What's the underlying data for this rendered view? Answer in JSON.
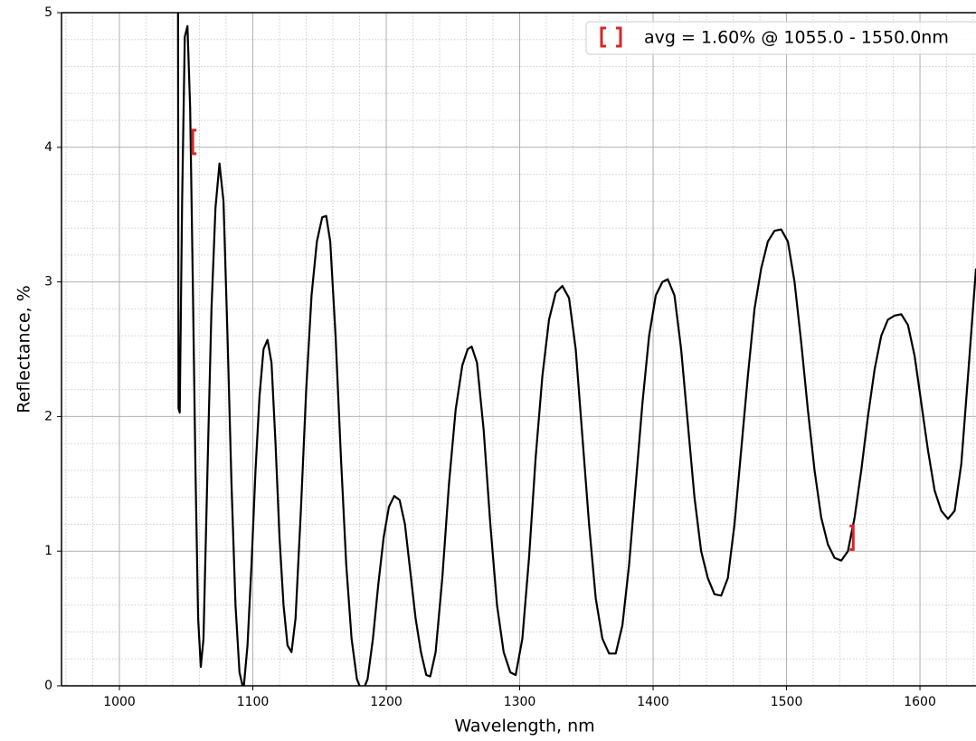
{
  "chart_data": {
    "type": "line",
    "xlabel": "Wavelength, nm",
    "ylabel": "Reflectance, %",
    "xlim": [
      956.6,
      1642
    ],
    "ylim": [
      0,
      5
    ],
    "xticks": [
      1000,
      1100,
      1200,
      1300,
      1400,
      1500,
      1600
    ],
    "yticks": [
      0,
      1,
      2,
      3,
      4,
      5
    ],
    "xminorticks": [
      960,
      980,
      1000,
      1020,
      1040,
      1060,
      1080,
      1100,
      1120,
      1140,
      1160,
      1180,
      1200,
      1220,
      1240,
      1260,
      1280,
      1300,
      1320,
      1340,
      1360,
      1380,
      1400,
      1420,
      1440,
      1460,
      1480,
      1500,
      1520,
      1540,
      1560,
      1580,
      1600,
      1620,
      1640
    ],
    "yminorticks": [
      0.2,
      0.4,
      0.6,
      0.8,
      1.2,
      1.4,
      1.6,
      1.8,
      2.2,
      2.4,
      2.6,
      2.8,
      3.2,
      3.4,
      3.6,
      3.8,
      4.2,
      4.4,
      4.6,
      4.8
    ],
    "grid": true,
    "x": [
      1043.8,
      1044.3,
      1045.2,
      1047,
      1049,
      1051,
      1053,
      1055,
      1057,
      1059,
      1061,
      1063,
      1066,
      1069,
      1072,
      1075,
      1078,
      1081,
      1084,
      1087,
      1090,
      1093,
      1096,
      1099,
      1102,
      1105,
      1108,
      1111,
      1114,
      1117,
      1120,
      1123,
      1126,
      1129,
      1132,
      1136,
      1140,
      1144,
      1148,
      1152,
      1155,
      1158,
      1162,
      1166,
      1170,
      1174,
      1178,
      1182,
      1186,
      1190,
      1194,
      1198,
      1202,
      1206,
      1210,
      1214,
      1218,
      1222,
      1226,
      1230,
      1233,
      1237,
      1242,
      1247,
      1252,
      1257,
      1261,
      1264,
      1268,
      1273,
      1278,
      1283,
      1288,
      1293,
      1297,
      1302,
      1307,
      1312,
      1317,
      1322,
      1327,
      1332,
      1337,
      1342,
      1347,
      1352,
      1357,
      1362,
      1367,
      1372,
      1377,
      1382,
      1387,
      1392,
      1397,
      1402,
      1407,
      1411,
      1416,
      1421,
      1426,
      1431,
      1436,
      1441,
      1446,
      1451,
      1456,
      1461,
      1466,
      1471,
      1476,
      1481,
      1486,
      1491,
      1496,
      1501,
      1506,
      1511,
      1516,
      1521,
      1526,
      1531,
      1536,
      1541,
      1546,
      1551,
      1556,
      1561,
      1566,
      1571,
      1576,
      1581,
      1586,
      1591,
      1596,
      1601,
      1606,
      1611,
      1616,
      1621,
      1626,
      1631,
      1636,
      1642
    ],
    "series": [
      {
        "name": "avg = 1.60% @ 1055.0 - 1550.0nm",
        "color": "#000000",
        "values": [
          6,
          2.06,
          2.03,
          3.6,
          4.82,
          4.9,
          4.3,
          3.0,
          1.6,
          0.5,
          0.14,
          0.35,
          1.6,
          2.8,
          3.55,
          3.88,
          3.6,
          2.6,
          1.5,
          0.6,
          0.1,
          -0.03,
          0.3,
          0.9,
          1.6,
          2.15,
          2.5,
          2.57,
          2.4,
          1.8,
          1.1,
          0.6,
          0.3,
          0.25,
          0.5,
          1.3,
          2.2,
          2.9,
          3.3,
          3.48,
          3.49,
          3.3,
          2.6,
          1.7,
          0.9,
          0.35,
          0.05,
          -0.05,
          0.05,
          0.35,
          0.75,
          1.1,
          1.33,
          1.41,
          1.38,
          1.2,
          0.85,
          0.5,
          0.25,
          0.08,
          0.07,
          0.25,
          0.8,
          1.5,
          2.05,
          2.38,
          2.5,
          2.52,
          2.4,
          1.9,
          1.2,
          0.6,
          0.25,
          0.1,
          0.08,
          0.35,
          0.95,
          1.7,
          2.3,
          2.72,
          2.92,
          2.97,
          2.88,
          2.5,
          1.85,
          1.2,
          0.65,
          0.35,
          0.24,
          0.24,
          0.45,
          0.9,
          1.5,
          2.1,
          2.6,
          2.9,
          3.0,
          3.02,
          2.9,
          2.5,
          1.95,
          1.4,
          1.0,
          0.8,
          0.68,
          0.67,
          0.8,
          1.2,
          1.75,
          2.3,
          2.8,
          3.1,
          3.3,
          3.38,
          3.39,
          3.3,
          3.0,
          2.55,
          2.05,
          1.6,
          1.25,
          1.05,
          0.95,
          0.93,
          1.0,
          1.25,
          1.6,
          2.0,
          2.35,
          2.6,
          2.72,
          2.75,
          2.76,
          2.68,
          2.45,
          2.1,
          1.75,
          1.45,
          1.3,
          1.24,
          1.3,
          1.65,
          2.3,
          3.1
        ]
      }
    ],
    "range_markers": {
      "color": "#d62728",
      "x": [
        1055,
        1550
      ],
      "y": [
        4.04,
        1.1
      ]
    },
    "legend": "upper right"
  }
}
